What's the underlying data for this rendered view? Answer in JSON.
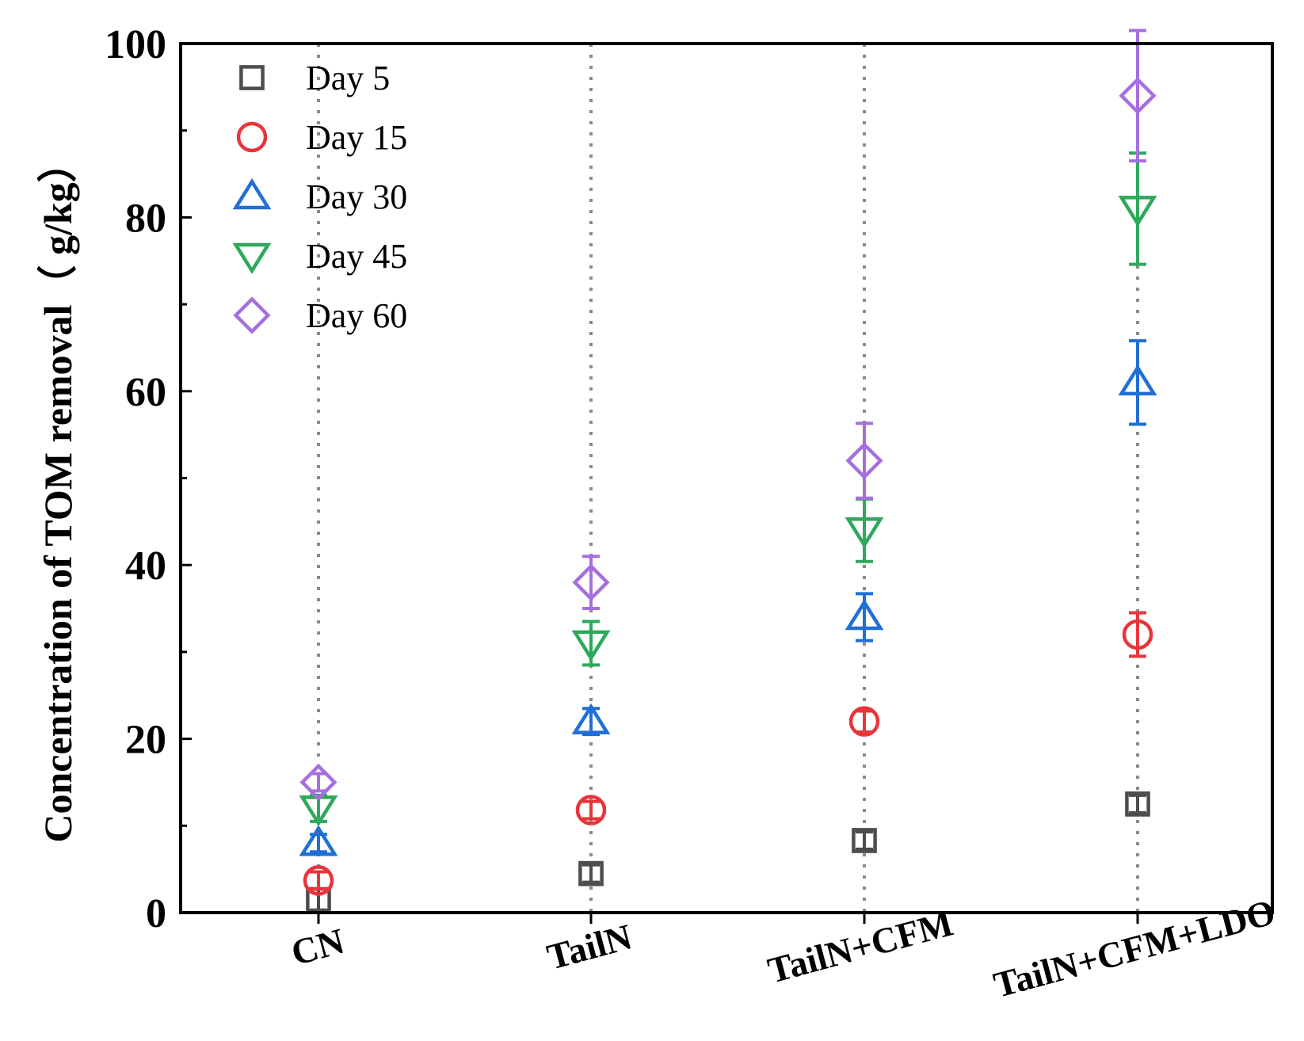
{
  "chart_data": {
    "type": "scatter",
    "title": "",
    "xlabel": "",
    "ylabel": "Concentration of TOM removal（ g/kg）",
    "ylim": [
      0,
      100
    ],
    "yticks": [
      0,
      20,
      40,
      60,
      80,
      100
    ],
    "categories": [
      "CN",
      "TailN",
      "TailN+CFM",
      "TailN+CFM+LDO"
    ],
    "grid": "vertical dotted lines at categories",
    "legend_position": "top-left",
    "series": [
      {
        "name": "Day 5",
        "marker": "square",
        "color": "#4d4d4d",
        "values": [
          1.5,
          4.5,
          8.3,
          12.5
        ],
        "errors": [
          1.2,
          1.0,
          1.0,
          1.0
        ]
      },
      {
        "name": "Day 15",
        "marker": "circle",
        "color": "#e8353a",
        "values": [
          3.7,
          11.8,
          22.0,
          32.0
        ],
        "errors": [
          1.0,
          1.0,
          1.2,
          2.5
        ]
      },
      {
        "name": "Day 30",
        "marker": "triangle-up",
        "color": "#1f6fd6",
        "values": [
          8.0,
          22.0,
          34.0,
          61.0
        ],
        "errors": [
          1.0,
          1.5,
          2.7,
          4.8
        ]
      },
      {
        "name": "Day 45",
        "marker": "triangle-down",
        "color": "#2ea85a",
        "values": [
          12.0,
          31.0,
          44.0,
          81.0
        ],
        "errors": [
          1.5,
          2.5,
          3.6,
          6.4
        ]
      },
      {
        "name": "Day 60",
        "marker": "diamond",
        "color": "#a66fe0",
        "values": [
          15.0,
          38.0,
          52.0,
          94.0
        ],
        "errors": [
          1.0,
          3.0,
          4.3,
          7.5
        ]
      }
    ]
  }
}
